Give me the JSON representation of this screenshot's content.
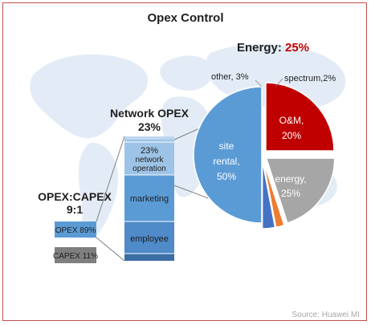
{
  "title": "Opex Control",
  "source": "Source: Huawei MI",
  "colors": {
    "frame": "#c0504d",
    "map": "#e3ecf6",
    "title": "#1f1f1f",
    "energy_highlight": "#c00000",
    "opex_box": "#5b9bd5",
    "capex_box": "#7f7f7f"
  },
  "ratio": {
    "label": "OPEX:CAPEX",
    "value": "9:1",
    "opex_label": "OPEX 89%",
    "capex_label": "CAPEX 11%"
  },
  "network_opex": {
    "title": "Network OPEX",
    "percent": "23%",
    "stack_labels": {
      "network_percent": "23%",
      "network_line1": "network",
      "network_line2": "operation",
      "marketing": "marketing",
      "employee": "employee"
    }
  },
  "energy_headline": {
    "label": "Energy: ",
    "value": "25%"
  },
  "chart_data": {
    "type": "pie",
    "title": "Opex Control",
    "slices": [
      {
        "name": "site rental",
        "value": 50,
        "label_lines": [
          "site",
          "rental,",
          "50%"
        ],
        "color": "#5b9bd5",
        "exploded": false
      },
      {
        "name": "energy",
        "value": 25,
        "label_lines": [
          "energy,",
          "25%"
        ],
        "color": "#c00000",
        "exploded": true
      },
      {
        "name": "O&M",
        "value": 20,
        "label_lines": [
          "O&M,",
          "20%"
        ],
        "color": "#a6a6a6",
        "exploded": true
      },
      {
        "name": "spectrum",
        "value": 2,
        "label_lines": [
          "spectrum,2%"
        ],
        "color": "#ed7d31",
        "exploded": true
      },
      {
        "name": "other",
        "value": 3,
        "label_lines": [
          "other, 3%"
        ],
        "color": "#4472c4",
        "exploded": true
      }
    ],
    "stacked_bar": {
      "name": "Network OPEX",
      "segments": [
        "network operation",
        "marketing",
        "employee"
      ]
    }
  }
}
